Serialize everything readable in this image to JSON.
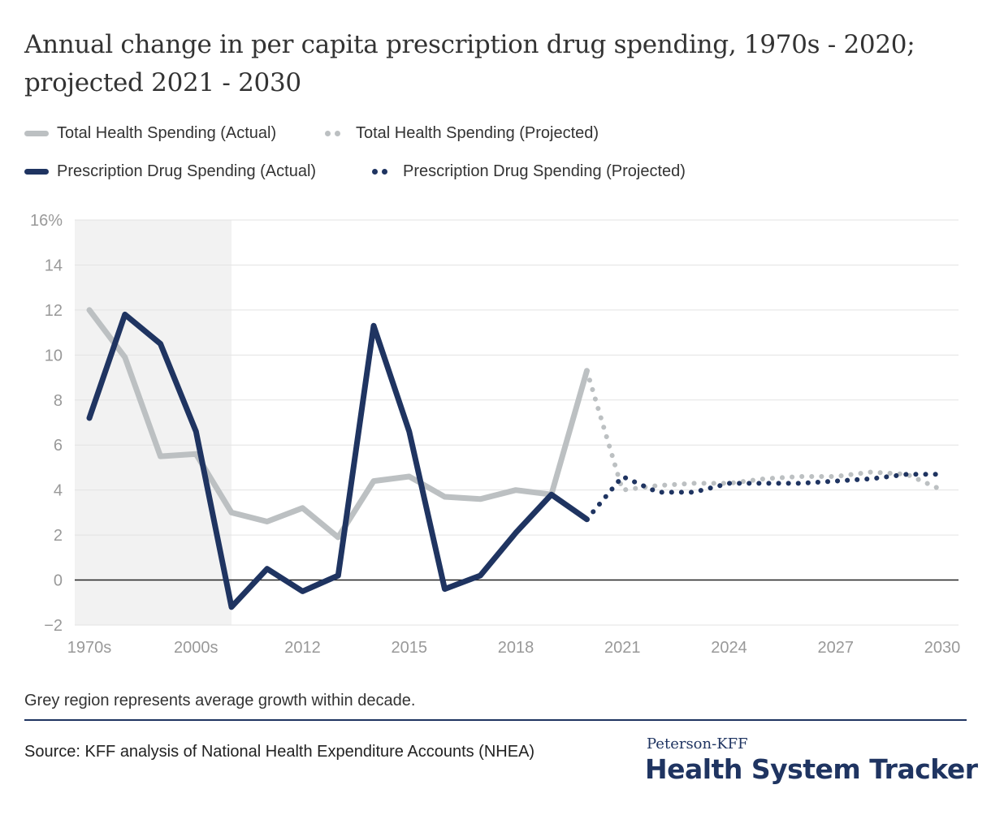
{
  "chart_data": {
    "type": "line",
    "title": "Annual change in per capita prescription drug spending, 1970s - 2020; projected 2021 - 2030",
    "x_ticks": [
      "1970s",
      "2000s",
      "2012",
      "2015",
      "2018",
      "2021",
      "2024",
      "2027",
      "2030"
    ],
    "y_ticks": [
      "16%",
      "14",
      "12",
      "10",
      "8",
      "6",
      "4",
      "2",
      "0",
      "−2"
    ],
    "ylim": [
      -2,
      16
    ],
    "grid": true,
    "legend_position": "top-left",
    "shaded_region": {
      "from": "1970s",
      "to": "2000s"
    },
    "x": [
      "1970s",
      "1980s",
      "1990s",
      "2000s",
      "2010",
      "2011",
      "2012",
      "2013",
      "2014",
      "2015",
      "2016",
      "2017",
      "2018",
      "2019",
      "2020",
      "2021",
      "2022",
      "2023",
      "2024",
      "2025",
      "2026",
      "2027",
      "2028",
      "2029",
      "2030"
    ],
    "series": [
      {
        "name": "Total Health Spending (Actual)",
        "color": "#bcc0c2",
        "style": "solid",
        "x": [
          "1970s",
          "1980s",
          "1990s",
          "2000s",
          "2010",
          "2011",
          "2012",
          "2013",
          "2014",
          "2015",
          "2016",
          "2017",
          "2018",
          "2019",
          "2020"
        ],
        "values": [
          12.0,
          9.9,
          5.5,
          5.6,
          3.0,
          2.6,
          3.2,
          1.9,
          4.4,
          4.6,
          3.7,
          3.6,
          4.0,
          3.8,
          9.3
        ]
      },
      {
        "name": "Total Health Spending (Projected)",
        "color": "#bcc0c2",
        "style": "dotted",
        "x": [
          "2020",
          "2021",
          "2022",
          "2023",
          "2024",
          "2025",
          "2026",
          "2027",
          "2028",
          "2029",
          "2030"
        ],
        "values": [
          9.3,
          4.0,
          4.2,
          4.3,
          4.3,
          4.5,
          4.6,
          4.6,
          4.8,
          4.7,
          4.0
        ]
      },
      {
        "name": "Prescription Drug Spending (Actual)",
        "color": "#1f3461",
        "style": "solid",
        "x": [
          "1970s",
          "1980s",
          "1990s",
          "2000s",
          "2010",
          "2011",
          "2012",
          "2013",
          "2014",
          "2015",
          "2016",
          "2017",
          "2018",
          "2019",
          "2020"
        ],
        "values": [
          7.2,
          11.8,
          10.5,
          6.6,
          -1.2,
          0.5,
          -0.5,
          0.2,
          11.3,
          6.6,
          -0.4,
          0.2,
          2.1,
          3.8,
          2.7
        ]
      },
      {
        "name": "Prescription Drug Spending (Projected)",
        "color": "#1f3461",
        "style": "dotted",
        "x": [
          "2020",
          "2021",
          "2022",
          "2023",
          "2024",
          "2025",
          "2026",
          "2027",
          "2028",
          "2029",
          "2030"
        ],
        "values": [
          2.7,
          4.6,
          3.9,
          3.9,
          4.3,
          4.3,
          4.3,
          4.4,
          4.5,
          4.7,
          4.7
        ]
      }
    ]
  },
  "note": "Grey region represents average growth within decade.",
  "source": "Source: KFF analysis of National Health Expenditure Accounts (NHEA)",
  "brand": {
    "small": "Peterson-KFF",
    "big": "Health System Tracker"
  }
}
